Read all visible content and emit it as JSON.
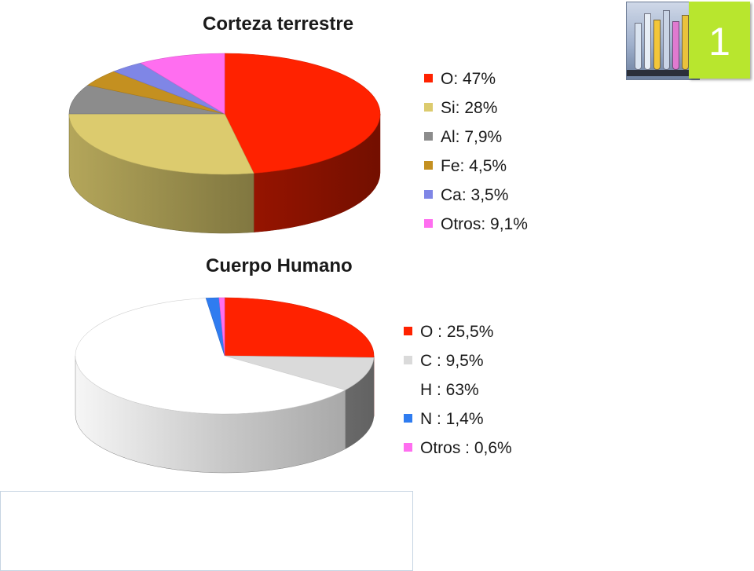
{
  "badge": {
    "number": "1"
  },
  "colors": {
    "badge": "#b8e62e"
  },
  "chart_data": [
    {
      "type": "pie",
      "title": "Corteza terrestre",
      "legend_position": "right",
      "style": "3d",
      "slices": [
        {
          "label": "O: 47%",
          "element": "O",
          "value": 47,
          "color": "#ff2200"
        },
        {
          "label": "Si: 28%",
          "element": "Si",
          "value": 28,
          "color": "#dccb6e"
        },
        {
          "label": "Al: 7,9%",
          "element": "Al",
          "value": 7.9,
          "color": "#8c8c8c"
        },
        {
          "label": "Fe: 4,5%",
          "element": "Fe",
          "value": 4.5,
          "color": "#c49020"
        },
        {
          "label": "Ca: 3,5%",
          "element": "Ca",
          "value": 3.5,
          "color": "#7f86e6"
        },
        {
          "label": "Otros: 9,1%",
          "element": "Otros",
          "value": 9.1,
          "color": "#ff6ef0"
        }
      ]
    },
    {
      "type": "pie",
      "title": "Cuerpo Humano",
      "legend_position": "right",
      "style": "3d",
      "slices": [
        {
          "label": "O : 25,5%",
          "element": "O",
          "value": 25.5,
          "color": "#ff2200"
        },
        {
          "label": "C : 9,5%",
          "element": "C",
          "value": 9.5,
          "color": "#dadada"
        },
        {
          "label": "H : 63%",
          "element": "H",
          "value": 63,
          "color": "#ffffff"
        },
        {
          "label": "N : 1,4%",
          "element": "N",
          "value": 1.4,
          "color": "#2f7cf0"
        },
        {
          "label": "Otros : 0,6%",
          "element": "Otros",
          "value": 0.6,
          "color": "#ff6ef0"
        }
      ]
    }
  ]
}
